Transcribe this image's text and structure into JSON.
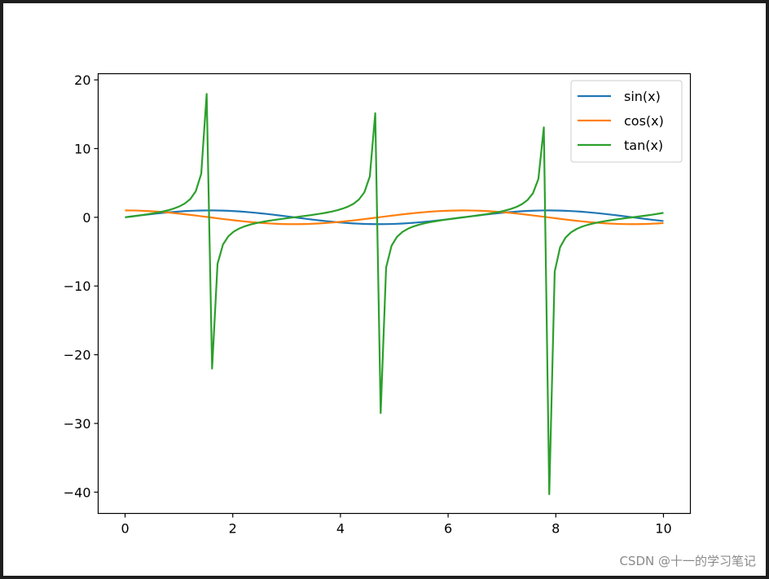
{
  "watermark": "CSDN @十一的学习笔记",
  "chart_data": {
    "type": "line",
    "title": "",
    "xlabel": "",
    "ylabel": "",
    "xlim": [
      -0.5,
      10.5
    ],
    "ylim": [
      -43.1,
      20.9
    ],
    "x_ticks": [
      0,
      2,
      4,
      6,
      8,
      10
    ],
    "y_ticks": [
      20,
      10,
      0,
      -10,
      -20,
      -30,
      -40
    ],
    "tick_labels": {
      "x": [
        "0",
        "2",
        "4",
        "6",
        "8",
        "10"
      ],
      "y": [
        "20",
        "10",
        "0",
        "−10",
        "−20",
        "−30",
        "−40"
      ]
    },
    "grid": false,
    "legend_position": "top-right",
    "x_samples": {
      "start": 0,
      "stop": 10,
      "num": 100
    },
    "series": [
      {
        "name": "sin(x)",
        "function": "sin",
        "color": "#1f77b4"
      },
      {
        "name": "cos(x)",
        "function": "cos",
        "color": "#ff7f0e"
      },
      {
        "name": "tan(x)",
        "function": "tan",
        "color": "#2ca02c"
      }
    ]
  }
}
